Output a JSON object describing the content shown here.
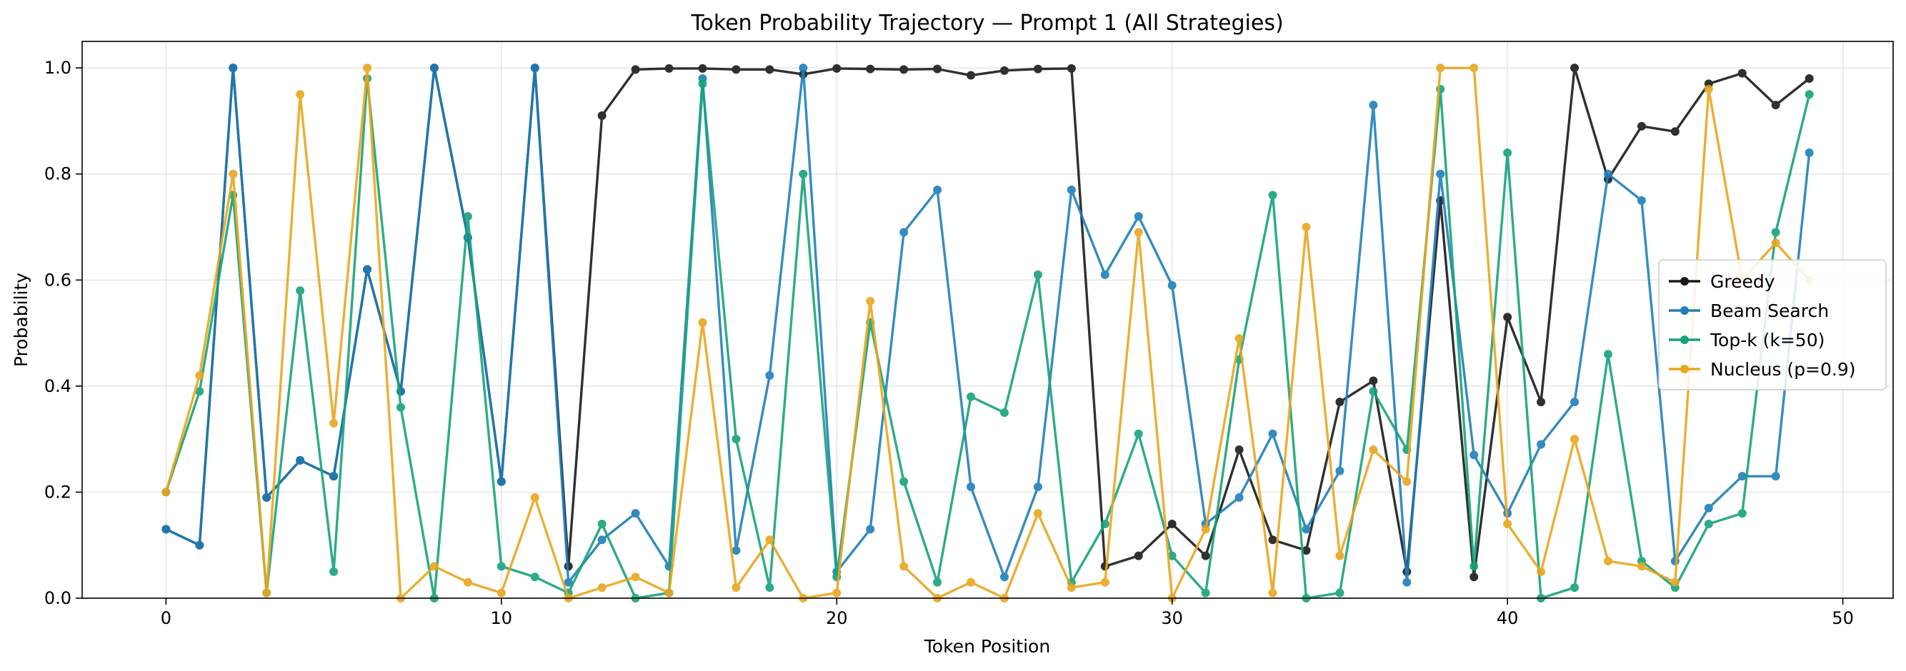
{
  "chart_data": {
    "type": "line",
    "title": "Token Probability Trajectory — Prompt 1 (All Strategies)",
    "xlabel": "Token Position",
    "ylabel": "Probability",
    "xlim": [
      -2.5,
      51.5
    ],
    "ylim": [
      0.0,
      1.05
    ],
    "xticks": [
      0,
      10,
      20,
      30,
      40,
      50
    ],
    "yticks": [
      0.0,
      0.2,
      0.4,
      0.6,
      0.8,
      1.0
    ],
    "xtick_labels": [
      "0",
      "10",
      "20",
      "30",
      "40",
      "50"
    ],
    "ytick_labels": [
      "0.0",
      "0.2",
      "0.4",
      "0.6",
      "0.8",
      "1.0"
    ],
    "grid": true,
    "legend_position": "center-right",
    "series": [
      {
        "name": "Greedy",
        "color": "#1a1a1a",
        "values": [
          0.13,
          0.1,
          1.0,
          0.19,
          0.26,
          0.23,
          0.62,
          0.39,
          1.0,
          0.68,
          0.22,
          1.0,
          0.06,
          0.91,
          0.997,
          0.999,
          0.999,
          0.997,
          0.997,
          0.988,
          0.999,
          0.998,
          0.997,
          0.998,
          0.986,
          0.995,
          0.998,
          0.999,
          0.06,
          0.08,
          0.14,
          0.08,
          0.28,
          0.11,
          0.09,
          0.37,
          0.41,
          0.05,
          0.75,
          0.04,
          0.53,
          0.37,
          1.0,
          0.79,
          0.89,
          0.88,
          0.97,
          0.99,
          0.93,
          0.98
        ]
      },
      {
        "name": "Beam Search",
        "color": "#1f7fba",
        "values": [
          0.13,
          0.1,
          1.0,
          0.19,
          0.26,
          0.23,
          0.62,
          0.39,
          1.0,
          0.68,
          0.22,
          1.0,
          0.03,
          0.11,
          0.16,
          0.06,
          0.98,
          0.09,
          0.42,
          1.0,
          0.05,
          0.13,
          0.69,
          0.77,
          0.21,
          0.04,
          0.21,
          0.77,
          0.61,
          0.72,
          0.59,
          0.14,
          0.19,
          0.31,
          0.13,
          0.24,
          0.93,
          0.03,
          0.8,
          0.27,
          0.16,
          0.29,
          0.37,
          0.8,
          0.75,
          0.07,
          0.17,
          0.23,
          0.23,
          0.84
        ]
      },
      {
        "name": "Top-k (k=50)",
        "color": "#16a37a",
        "values": [
          0.2,
          0.39,
          0.76,
          0.01,
          0.58,
          0.05,
          0.98,
          0.36,
          0.0,
          0.72,
          0.06,
          0.04,
          0.01,
          0.14,
          0.0,
          0.01,
          0.97,
          0.3,
          0.02,
          0.8,
          0.04,
          0.52,
          0.22,
          0.03,
          0.38,
          0.35,
          0.61,
          0.03,
          0.14,
          0.31,
          0.08,
          0.01,
          0.45,
          0.76,
          0.0,
          0.01,
          0.39,
          0.28,
          0.96,
          0.06,
          0.84,
          0.0,
          0.02,
          0.46,
          0.07,
          0.02,
          0.14,
          0.16,
          0.69,
          0.95
        ]
      },
      {
        "name": "Nucleus (p=0.9)",
        "color": "#e8a61e",
        "values": [
          0.2,
          0.42,
          0.8,
          0.01,
          0.95,
          0.33,
          1.0,
          0.0,
          0.06,
          0.03,
          0.01,
          0.19,
          0.0,
          0.02,
          0.04,
          0.01,
          0.52,
          0.02,
          0.11,
          0.0,
          0.01,
          0.56,
          0.06,
          0.0,
          0.03,
          0.0,
          0.16,
          0.02,
          0.03,
          0.69,
          0.0,
          0.13,
          0.49,
          0.01,
          0.7,
          0.08,
          0.28,
          0.22,
          1.0,
          1.0,
          0.14,
          0.05,
          0.3,
          0.07,
          0.06,
          0.03,
          0.96,
          0.6,
          0.67,
          0.6
        ]
      }
    ]
  }
}
